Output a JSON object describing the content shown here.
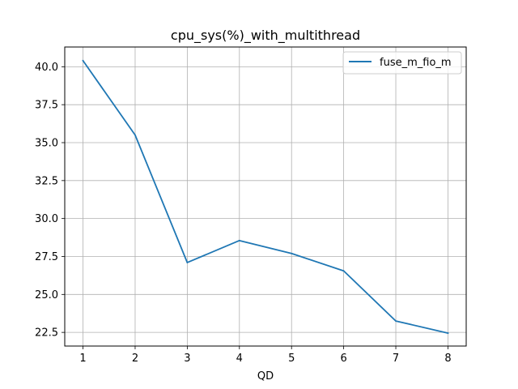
{
  "chart_data": {
    "type": "line",
    "title": "cpu_sys(%)_with_multithread",
    "xlabel": "QD",
    "ylabel": "",
    "x": [
      1,
      2,
      3,
      4,
      5,
      6,
      7,
      8
    ],
    "xticks": [
      1,
      2,
      3,
      4,
      5,
      6,
      7,
      8
    ],
    "xlim": [
      0.65,
      8.35
    ],
    "yticks": [
      22.5,
      25.0,
      27.5,
      30.0,
      32.5,
      35.0,
      37.5,
      40.0
    ],
    "ytick_labels": [
      "22.5",
      "25.0",
      "27.5",
      "30.0",
      "32.5",
      "35.0",
      "37.5",
      "40.0"
    ],
    "ylim": [
      21.6,
      41.3
    ],
    "grid": true,
    "legend_position": "top-right",
    "series": [
      {
        "name": "fuse_m_fio_m",
        "color": "#1f77b4",
        "values": [
          40.4,
          35.5,
          27.1,
          28.55,
          27.7,
          26.55,
          23.25,
          22.45
        ]
      }
    ]
  }
}
